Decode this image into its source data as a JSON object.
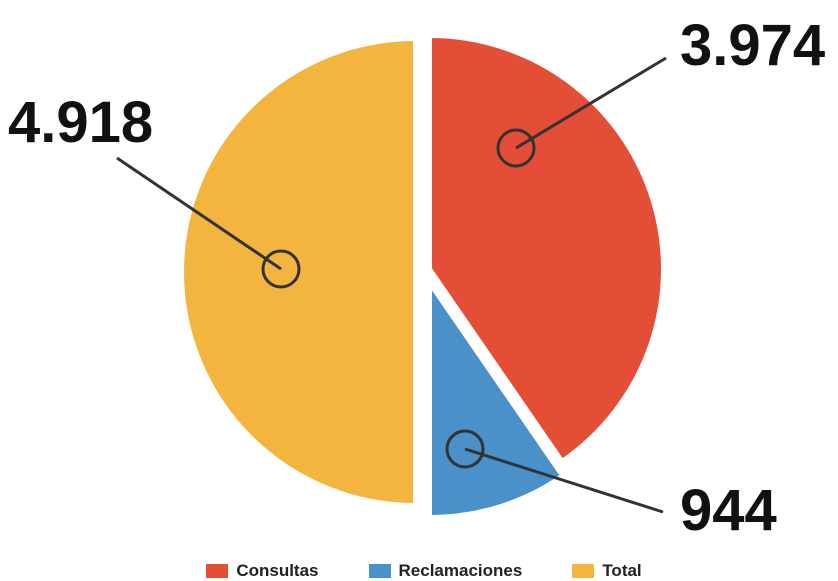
{
  "chart_data": {
    "type": "pie",
    "series": [
      {
        "name": "Consultas",
        "value": 3974,
        "label": "3.974",
        "color": "#E44D36"
      },
      {
        "name": "Reclamaciones",
        "value": 944,
        "label": "944",
        "color": "#4A90C9"
      },
      {
        "name": "Total",
        "value": 4918,
        "label": "4.918",
        "color": "#F3B53F"
      }
    ],
    "legend": {
      "position": "bottom"
    }
  }
}
